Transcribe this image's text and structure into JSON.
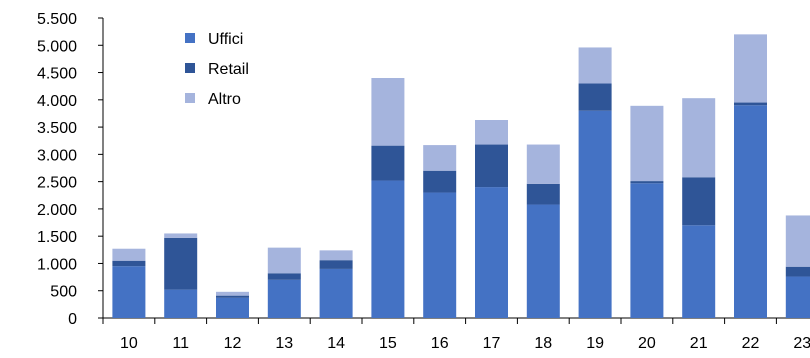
{
  "chart_data": {
    "type": "bar",
    "stacked": true,
    "title": "",
    "xlabel": "",
    "ylabel": "",
    "categories": [
      "10",
      "11",
      "12",
      "13",
      "14",
      "15",
      "16",
      "17",
      "18",
      "19",
      "20",
      "21",
      "22",
      "23"
    ],
    "series": [
      {
        "name": "Uffici",
        "color": "#4472C4",
        "values": [
          950,
          520,
          370,
          700,
          900,
          2520,
          2300,
          2400,
          2080,
          3800,
          2470,
          1700,
          3900,
          760
        ]
      },
      {
        "name": "Retail",
        "color": "#2F5597",
        "values": [
          100,
          950,
          40,
          120,
          160,
          640,
          400,
          780,
          380,
          500,
          40,
          880,
          50,
          180
        ]
      },
      {
        "name": "Altro",
        "color": "#A5B4DD",
        "values": [
          220,
          80,
          70,
          470,
          180,
          1240,
          470,
          450,
          720,
          660,
          1380,
          1450,
          1250,
          940
        ]
      }
    ],
    "ylim": [
      0,
      5500
    ],
    "yticks": [
      0,
      500,
      1000,
      1500,
      2000,
      2500,
      3000,
      3500,
      4000,
      4500,
      5000,
      5500
    ],
    "ytick_labels": [
      "0",
      "500",
      "1.000",
      "1.500",
      "2.000",
      "2.500",
      "3.000",
      "3.500",
      "4.000",
      "4.500",
      "5.000",
      "5.500"
    ],
    "grid": false,
    "legend_position": "top-left"
  }
}
